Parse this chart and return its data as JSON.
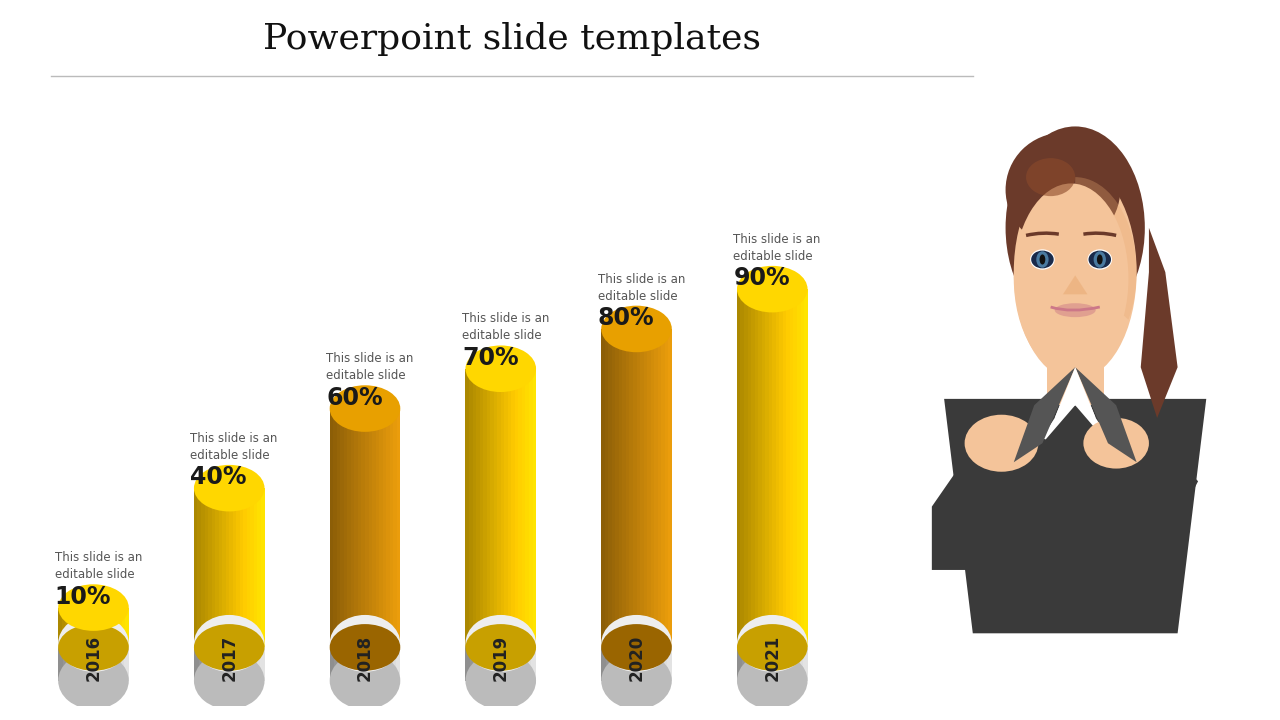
{
  "title": "Powerpoint slide templates",
  "years": [
    "2016",
    "2017",
    "2018",
    "2019",
    "2020",
    "2021"
  ],
  "values": [
    10,
    40,
    60,
    70,
    80,
    90
  ],
  "labels": [
    "10%",
    "40%",
    "60%",
    "70%",
    "80%",
    "90%"
  ],
  "annotation": "This slide is an\neditable slide",
  "bar_colors_body": [
    "#F5C200",
    "#F5C200",
    "#C8860A",
    "#F5C200",
    "#C8860A",
    "#F5C200"
  ],
  "bar_colors_top": [
    "#FFD700",
    "#FFD700",
    "#E8A000",
    "#FFD700",
    "#E8A000",
    "#FFD700"
  ],
  "bar_colors_dark": [
    "#C8A000",
    "#C8A000",
    "#9A6500",
    "#C8A000",
    "#9A6500",
    "#C8A000"
  ],
  "base_light": "#E8E8E8",
  "base_mid": "#CCCCCC",
  "base_dark": "#AAAAAA",
  "background_color": "#FFFFFF",
  "title_fontsize": 26,
  "label_fontsize": 17,
  "anno_fontsize": 8.5,
  "year_fontsize": 12,
  "title_color": "#111111",
  "label_color": "#1A1A1A",
  "anno_color": "#555555",
  "year_color": "#222222"
}
